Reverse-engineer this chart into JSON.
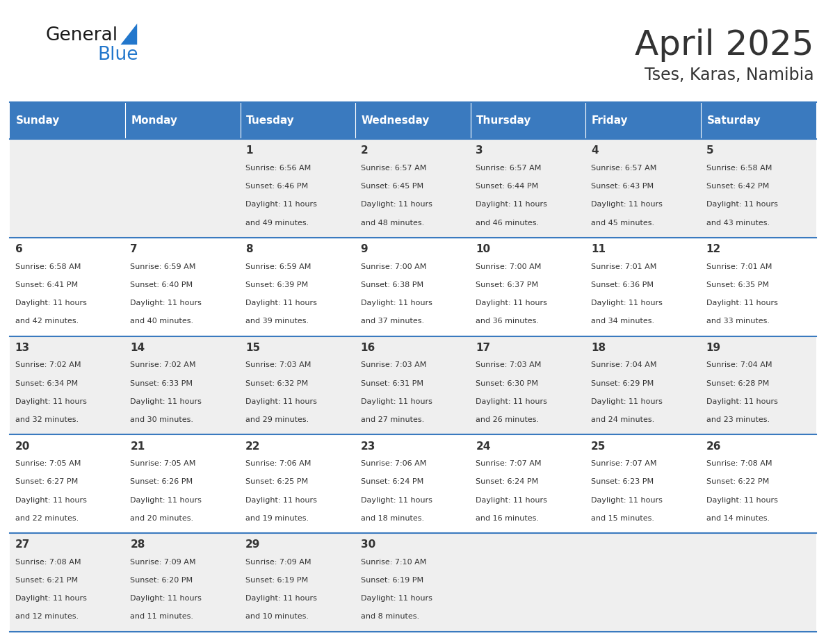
{
  "title": "April 2025",
  "subtitle": "Tses, Karas, Namibia",
  "header_bg": "#3a7abf",
  "header_text_color": "#ffffff",
  "cell_bg_light": "#efefef",
  "cell_bg_white": "#ffffff",
  "border_color": "#3a7abf",
  "text_color": "#333333",
  "days_of_week": [
    "Sunday",
    "Monday",
    "Tuesday",
    "Wednesday",
    "Thursday",
    "Friday",
    "Saturday"
  ],
  "calendar": [
    [
      {
        "day": "",
        "sunrise": "",
        "sunset": "",
        "daylight": ""
      },
      {
        "day": "",
        "sunrise": "",
        "sunset": "",
        "daylight": ""
      },
      {
        "day": "1",
        "sunrise": "6:56 AM",
        "sunset": "6:46 PM",
        "daylight": "11 hours and 49 minutes."
      },
      {
        "day": "2",
        "sunrise": "6:57 AM",
        "sunset": "6:45 PM",
        "daylight": "11 hours and 48 minutes."
      },
      {
        "day": "3",
        "sunrise": "6:57 AM",
        "sunset": "6:44 PM",
        "daylight": "11 hours and 46 minutes."
      },
      {
        "day": "4",
        "sunrise": "6:57 AM",
        "sunset": "6:43 PM",
        "daylight": "11 hours and 45 minutes."
      },
      {
        "day": "5",
        "sunrise": "6:58 AM",
        "sunset": "6:42 PM",
        "daylight": "11 hours and 43 minutes."
      }
    ],
    [
      {
        "day": "6",
        "sunrise": "6:58 AM",
        "sunset": "6:41 PM",
        "daylight": "11 hours and 42 minutes."
      },
      {
        "day": "7",
        "sunrise": "6:59 AM",
        "sunset": "6:40 PM",
        "daylight": "11 hours and 40 minutes."
      },
      {
        "day": "8",
        "sunrise": "6:59 AM",
        "sunset": "6:39 PM",
        "daylight": "11 hours and 39 minutes."
      },
      {
        "day": "9",
        "sunrise": "7:00 AM",
        "sunset": "6:38 PM",
        "daylight": "11 hours and 37 minutes."
      },
      {
        "day": "10",
        "sunrise": "7:00 AM",
        "sunset": "6:37 PM",
        "daylight": "11 hours and 36 minutes."
      },
      {
        "day": "11",
        "sunrise": "7:01 AM",
        "sunset": "6:36 PM",
        "daylight": "11 hours and 34 minutes."
      },
      {
        "day": "12",
        "sunrise": "7:01 AM",
        "sunset": "6:35 PM",
        "daylight": "11 hours and 33 minutes."
      }
    ],
    [
      {
        "day": "13",
        "sunrise": "7:02 AM",
        "sunset": "6:34 PM",
        "daylight": "11 hours and 32 minutes."
      },
      {
        "day": "14",
        "sunrise": "7:02 AM",
        "sunset": "6:33 PM",
        "daylight": "11 hours and 30 minutes."
      },
      {
        "day": "15",
        "sunrise": "7:03 AM",
        "sunset": "6:32 PM",
        "daylight": "11 hours and 29 minutes."
      },
      {
        "day": "16",
        "sunrise": "7:03 AM",
        "sunset": "6:31 PM",
        "daylight": "11 hours and 27 minutes."
      },
      {
        "day": "17",
        "sunrise": "7:03 AM",
        "sunset": "6:30 PM",
        "daylight": "11 hours and 26 minutes."
      },
      {
        "day": "18",
        "sunrise": "7:04 AM",
        "sunset": "6:29 PM",
        "daylight": "11 hours and 24 minutes."
      },
      {
        "day": "19",
        "sunrise": "7:04 AM",
        "sunset": "6:28 PM",
        "daylight": "11 hours and 23 minutes."
      }
    ],
    [
      {
        "day": "20",
        "sunrise": "7:05 AM",
        "sunset": "6:27 PM",
        "daylight": "11 hours and 22 minutes."
      },
      {
        "day": "21",
        "sunrise": "7:05 AM",
        "sunset": "6:26 PM",
        "daylight": "11 hours and 20 minutes."
      },
      {
        "day": "22",
        "sunrise": "7:06 AM",
        "sunset": "6:25 PM",
        "daylight": "11 hours and 19 minutes."
      },
      {
        "day": "23",
        "sunrise": "7:06 AM",
        "sunset": "6:24 PM",
        "daylight": "11 hours and 18 minutes."
      },
      {
        "day": "24",
        "sunrise": "7:07 AM",
        "sunset": "6:24 PM",
        "daylight": "11 hours and 16 minutes."
      },
      {
        "day": "25",
        "sunrise": "7:07 AM",
        "sunset": "6:23 PM",
        "daylight": "11 hours and 15 minutes."
      },
      {
        "day": "26",
        "sunrise": "7:08 AM",
        "sunset": "6:22 PM",
        "daylight": "11 hours and 14 minutes."
      }
    ],
    [
      {
        "day": "27",
        "sunrise": "7:08 AM",
        "sunset": "6:21 PM",
        "daylight": "11 hours and 12 minutes."
      },
      {
        "day": "28",
        "sunrise": "7:09 AM",
        "sunset": "6:20 PM",
        "daylight": "11 hours and 11 minutes."
      },
      {
        "day": "29",
        "sunrise": "7:09 AM",
        "sunset": "6:19 PM",
        "daylight": "11 hours and 10 minutes."
      },
      {
        "day": "30",
        "sunrise": "7:10 AM",
        "sunset": "6:19 PM",
        "daylight": "11 hours and 8 minutes."
      },
      {
        "day": "",
        "sunrise": "",
        "sunset": "",
        "daylight": ""
      },
      {
        "day": "",
        "sunrise": "",
        "sunset": "",
        "daylight": ""
      },
      {
        "day": "",
        "sunrise": "",
        "sunset": "",
        "daylight": ""
      }
    ]
  ],
  "logo_general_color": "#1a1a1a",
  "logo_blue_color": "#2277cc",
  "logo_triangle_color": "#2277cc"
}
